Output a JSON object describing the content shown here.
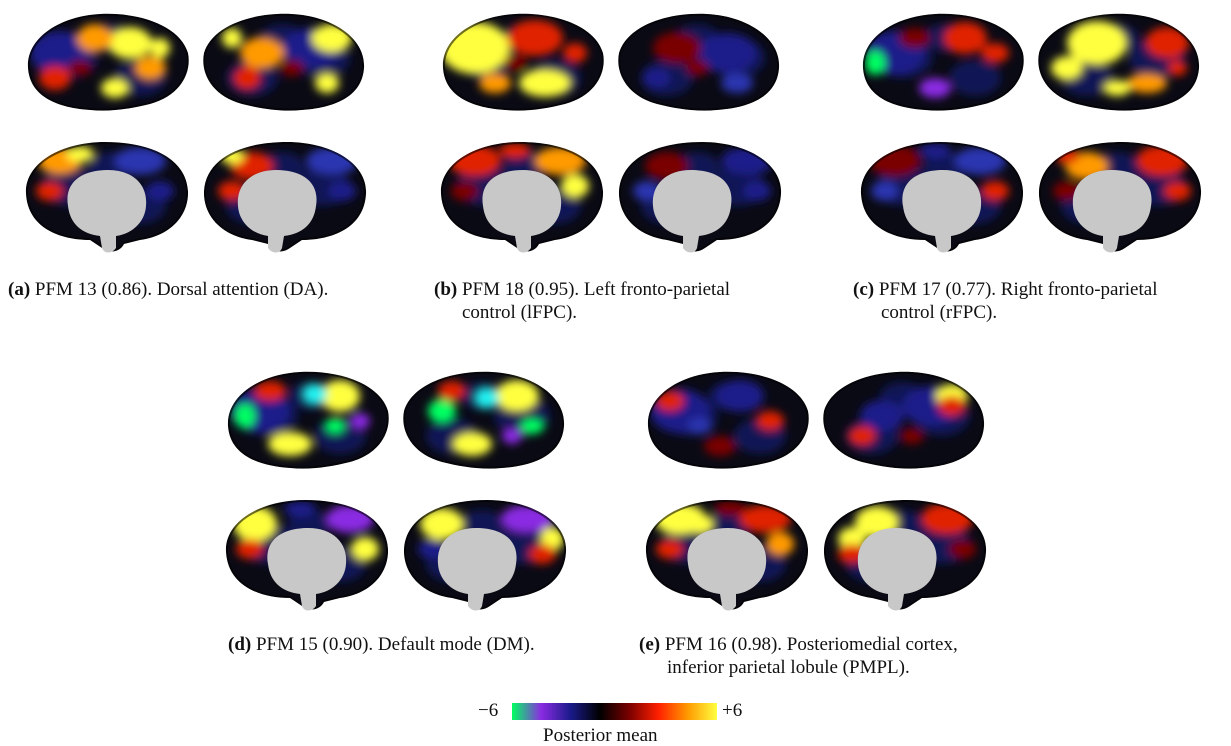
{
  "panels": [
    {
      "id": "a",
      "label": "(a)",
      "line1": " PFM 13 (0.86).  Dorsal attention (DA).",
      "line2": ""
    },
    {
      "id": "b",
      "label": "(b)",
      "line1": " PFM 18 (0.95).   Left fronto-parietal",
      "line2": "control (lFPC)."
    },
    {
      "id": "c",
      "label": "(c)",
      "line1": " PFM 17 (0.77).  Right fronto-parietal",
      "line2": "control (rFPC)."
    },
    {
      "id": "d",
      "label": "(d)",
      "line1": " PFM 15 (0.90).  Default mode (DM).",
      "line2": ""
    },
    {
      "id": "e",
      "label": "(e)",
      "line1": " PFM 16 (0.98).  Posteriomedial cortex,",
      "line2": "inferior parietal lobule (PMPL)."
    }
  ],
  "colorbar": {
    "min_label": "−6",
    "max_label": "+6",
    "title": "Posterior mean",
    "stops": [
      "#00ff60",
      "#8a2be2",
      "#1a1a8a",
      "#000000",
      "#7a0000",
      "#ff2000",
      "#ff9a00",
      "#ffff40"
    ]
  },
  "colors": {
    "medial_wall": "#c8c8c8",
    "dark": "#0a0a14",
    "navy": "#1a1f8a"
  }
}
